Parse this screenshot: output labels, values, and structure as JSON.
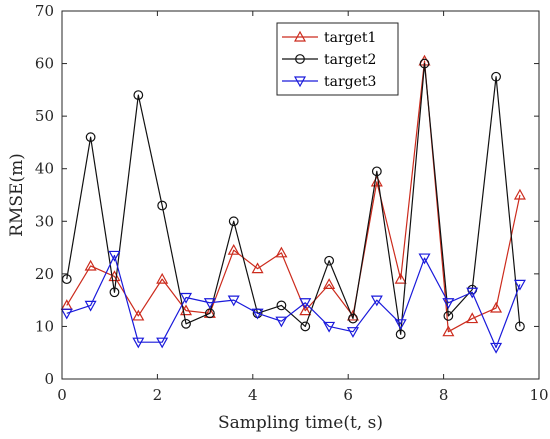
{
  "chart_data": {
    "type": "line",
    "xlabel": "Sampling time(t, s)",
    "ylabel": "RMSE(m)",
    "xlim": [
      0,
      10
    ],
    "ylim": [
      0,
      70
    ],
    "xticks": [
      0,
      2,
      4,
      6,
      8,
      10
    ],
    "yticks": [
      0,
      10,
      20,
      30,
      40,
      50,
      60,
      70
    ],
    "grid": false,
    "legend_position": "top-right",
    "x": [
      0.1,
      0.6,
      1.1,
      1.6,
      2.1,
      2.6,
      3.1,
      3.6,
      4.1,
      4.6,
      5.1,
      5.6,
      6.1,
      6.6,
      7.1,
      7.6,
      8.1,
      8.6,
      9.1,
      9.6
    ],
    "series": [
      {
        "name": "target1",
        "color": "#cc2b1d",
        "marker": "triangle-up",
        "values": [
          14.0,
          21.5,
          19.5,
          12.0,
          19.0,
          13.0,
          12.5,
          24.5,
          21.0,
          24.0,
          13.0,
          18.0,
          12.0,
          37.5,
          19.0,
          60.5,
          9.0,
          11.5,
          13.5,
          35.0
        ]
      },
      {
        "name": "target2",
        "color": "#111111",
        "marker": "circle",
        "values": [
          19.0,
          46.0,
          16.5,
          54.0,
          33.0,
          10.5,
          12.5,
          30.0,
          12.5,
          14.0,
          10.0,
          22.5,
          11.5,
          39.5,
          8.5,
          60.0,
          12.0,
          17.0,
          57.5,
          10.0
        ]
      },
      {
        "name": "target3",
        "color": "#1a1adb",
        "marker": "triangle-down",
        "values": [
          12.5,
          14.0,
          23.5,
          7.0,
          7.0,
          15.5,
          14.5,
          15.0,
          12.5,
          11.0,
          14.5,
          10.0,
          9.0,
          15.0,
          10.5,
          23.0,
          14.5,
          16.5,
          6.0,
          18.0
        ]
      }
    ]
  }
}
